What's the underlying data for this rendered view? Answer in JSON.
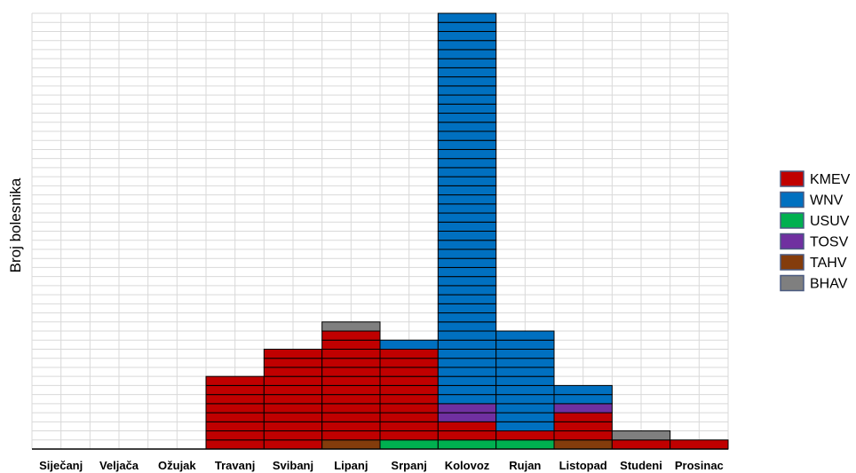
{
  "chart_data": {
    "type": "bar",
    "stacked": true,
    "title": "",
    "xlabel": "",
    "ylabel": "Broj bolesnika",
    "categories": [
      "Siječanj",
      "Veljača",
      "Ožujak",
      "Travanj",
      "Svibanj",
      "Lipanj",
      "Srpanj",
      "Kolovoz",
      "Rujan",
      "Listopad",
      "Studeni",
      "Prosinac"
    ],
    "ylim": [
      0,
      48
    ],
    "grid": true,
    "y_tick_labels_shown": false,
    "legend_position": "right",
    "series": [
      {
        "name": "TAHV",
        "color": "#843c0c",
        "values": [
          0,
          0,
          0,
          0,
          0,
          1,
          0,
          0,
          0,
          1,
          0,
          0
        ]
      },
      {
        "name": "USUV",
        "color": "#00b050",
        "values": [
          0,
          0,
          0,
          0,
          0,
          0,
          1,
          1,
          1,
          0,
          0,
          0
        ]
      },
      {
        "name": "KMEV",
        "color": "#c00000",
        "values": [
          0,
          0,
          0,
          8,
          11,
          12,
          10,
          2,
          1,
          3,
          1,
          1
        ]
      },
      {
        "name": "TOSV",
        "color": "#7030a0",
        "values": [
          0,
          0,
          0,
          0,
          0,
          0,
          0,
          2,
          0,
          1,
          0,
          0
        ]
      },
      {
        "name": "WNV",
        "color": "#0070c0",
        "values": [
          0,
          0,
          0,
          0,
          0,
          0,
          1,
          43,
          11,
          2,
          0,
          0
        ]
      },
      {
        "name": "BHAV",
        "color": "#7f7f7f",
        "values": [
          0,
          0,
          0,
          0,
          0,
          1,
          0,
          0,
          0,
          0,
          1,
          0
        ]
      }
    ],
    "legend_order": [
      "KMEV",
      "WNV",
      "USUV",
      "TOSV",
      "TAHV",
      "BHAV"
    ]
  }
}
